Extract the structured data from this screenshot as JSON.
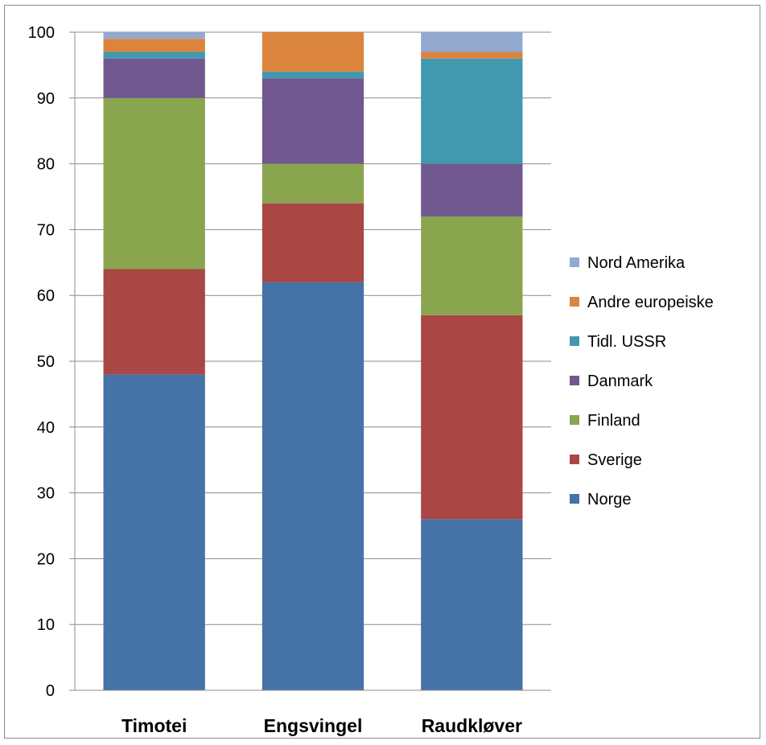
{
  "chart_data": {
    "type": "bar",
    "stacked": true,
    "title": "",
    "xlabel": "",
    "ylabel": "",
    "ylim": [
      0,
      100
    ],
    "yticks": [
      0,
      10,
      20,
      30,
      40,
      50,
      60,
      70,
      80,
      90,
      100
    ],
    "grid": true,
    "legend_position": "right",
    "categories": [
      "Timotei",
      "Engsvingel",
      "Raudkløver"
    ],
    "series": [
      {
        "name": "Norge",
        "color": "#4572a7",
        "values": [
          48,
          62,
          26
        ]
      },
      {
        "name": "Sverige",
        "color": "#aa4643",
        "values": [
          16,
          12,
          31
        ]
      },
      {
        "name": "Finland",
        "color": "#89a54e",
        "values": [
          26,
          6,
          15
        ]
      },
      {
        "name": "Danmark",
        "color": "#71588f",
        "values": [
          6,
          13,
          8
        ]
      },
      {
        "name": "Tidl. USSR",
        "color": "#4198af",
        "values": [
          1,
          1,
          16
        ]
      },
      {
        "name": "Andre europeiske",
        "color": "#db843d",
        "values": [
          2,
          6,
          1
        ]
      },
      {
        "name": "Nord Amerika",
        "color": "#93a9cf",
        "values": [
          1,
          0,
          3
        ]
      }
    ]
  }
}
